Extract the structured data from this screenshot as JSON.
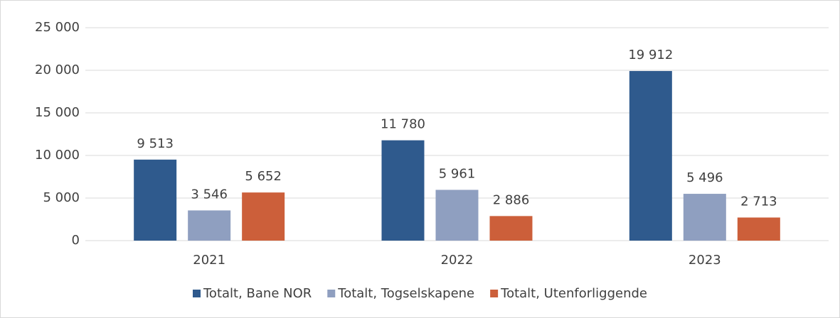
{
  "chart_data": {
    "type": "bar",
    "categories": [
      "2021",
      "2022",
      "2023"
    ],
    "series": [
      {
        "name": "Totalt, Bane NOR",
        "color": "#2f5a8d",
        "values": [
          9513,
          11780,
          19912
        ],
        "value_labels": [
          "9 513",
          "11 780",
          "19 912"
        ]
      },
      {
        "name": "Totalt, Togselskapene",
        "color": "#8f9fc0",
        "values": [
          3546,
          5961,
          5496
        ],
        "value_labels": [
          "3 546",
          "5 961",
          "5 496"
        ]
      },
      {
        "name": "Totalt, Utenforliggende",
        "color": "#cc5f3a",
        "values": [
          5652,
          2886,
          2713
        ],
        "value_labels": [
          "5 652",
          "2 886",
          "2 713"
        ]
      }
    ],
    "ylim": [
      0,
      25000
    ],
    "yticks": [
      0,
      {
        "value": 5000,
        "label": "5 000"
      },
      {
        "value": 10000,
        "label": "10 000"
      },
      {
        "value": 15000,
        "label": "15 000"
      },
      {
        "value": 20000,
        "label": "20 000"
      },
      {
        "value": 25000,
        "label": "25 000"
      }
    ],
    "grid": true,
    "legend": "bottom"
  }
}
